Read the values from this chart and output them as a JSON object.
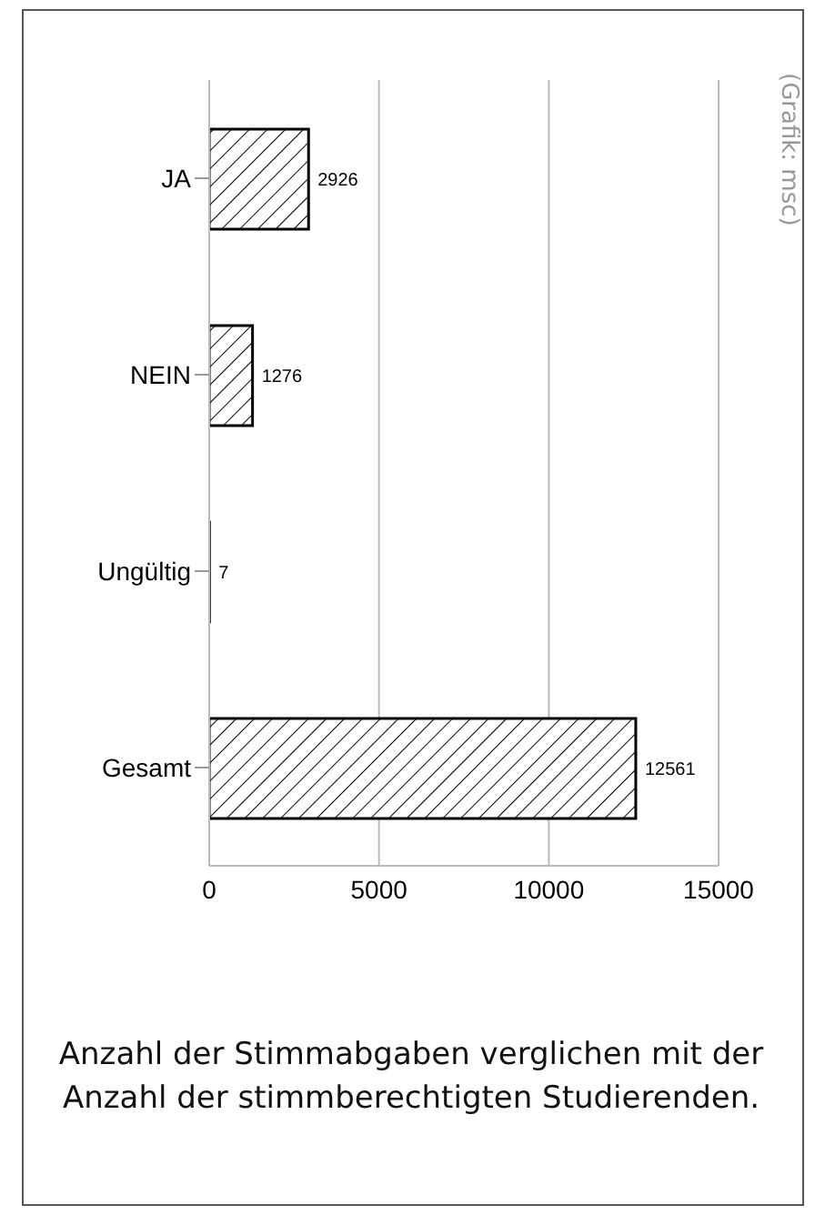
{
  "chart_data": {
    "type": "bar",
    "orientation": "horizontal",
    "categories": [
      "JA",
      "NEIN",
      "Ungültig",
      "Gesamt"
    ],
    "values": [
      2926,
      1276,
      7,
      12561
    ],
    "color": "#000000",
    "xlim": [
      0,
      15000
    ],
    "xticks": [
      0,
      5000,
      10000,
      15000
    ],
    "grid": "x",
    "data_labels": true,
    "annotations": [
      "(Grafik: msc)",
      "Anzahl der Stimmabgaben verglichen mit der Anzahl der stimmberechtigten Studierenden."
    ]
  }
}
